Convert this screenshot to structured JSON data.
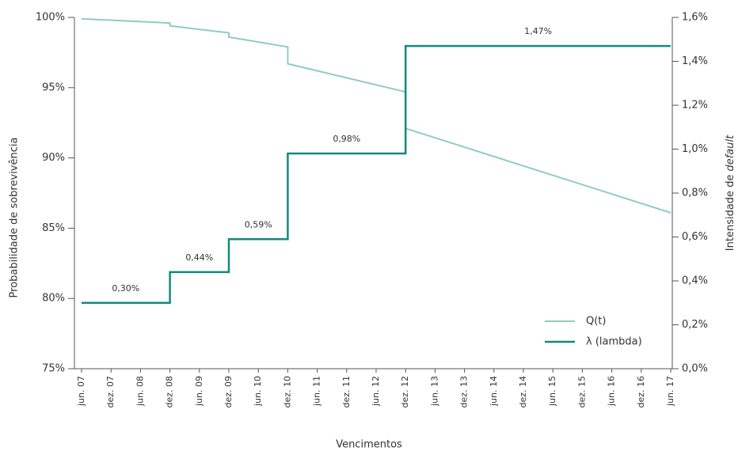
{
  "chart_data": {
    "type": "line",
    "xlabel": "Vencimentos",
    "ylabel": "Probabilidade de sobrevivência",
    "y2label": [
      "Intensidade de",
      "default"
    ],
    "categories": [
      "jun. 07",
      "dez. 07",
      "jun. 08",
      "dez. 08",
      "jun. 09",
      "dez. 09",
      "jun. 10",
      "dez. 10",
      "jun. 11",
      "dez. 11",
      "jun. 12",
      "dez. 12",
      "jun. 13",
      "dez. 13",
      "jun. 14",
      "dez. 14",
      "jun. 15",
      "dez. 15",
      "jun. 16",
      "dez. 16",
      "jun. 17"
    ],
    "ylim": [
      75,
      100
    ],
    "yticks": [
      {
        "value": 75,
        "label": "75%"
      },
      {
        "value": 80,
        "label": "80%"
      },
      {
        "value": 85,
        "label": "85%"
      },
      {
        "value": 90,
        "label": "90%"
      },
      {
        "value": 95,
        "label": "95%"
      },
      {
        "value": 100,
        "label": "100%"
      }
    ],
    "y2lim": [
      0,
      1.6
    ],
    "y2ticks": [
      {
        "value": 0,
        "label": "0,0%"
      },
      {
        "value": 0.2,
        "label": "0,2%"
      },
      {
        "value": 0.4,
        "label": "0,4%"
      },
      {
        "value": 0.6,
        "label": "0,6%"
      },
      {
        "value": 0.8,
        "label": "0,8%"
      },
      {
        "value": 1.0,
        "label": "1,0%"
      },
      {
        "value": 1.2,
        "label": "1,2%"
      },
      {
        "value": 1.4,
        "label": "1,4%"
      },
      {
        "value": 1.6,
        "label": "1,6%"
      }
    ],
    "series": [
      {
        "name": "Q(t)",
        "color": "#8ecdc3",
        "x": [
          "jun. 07",
          "dez. 08",
          "dez. 08",
          "dez. 09",
          "dez. 09",
          "dez. 10",
          "dez. 10",
          "dez. 12",
          "dez. 12",
          "jun. 17"
        ],
        "values": [
          99.9,
          99.6,
          99.4,
          98.9,
          98.6,
          97.9,
          96.7,
          94.7,
          92.1,
          86.1
        ]
      },
      {
        "name": "λ (lambda)",
        "color": "#138a7e",
        "axis": "y2",
        "x": [
          "jun. 07",
          "dez. 08",
          "dez. 08",
          "dez. 09",
          "dez. 09",
          "dez. 10",
          "dez. 10",
          "dez. 12",
          "dez. 12",
          "jun. 17"
        ],
        "values": [
          0.3,
          0.3,
          0.44,
          0.44,
          0.59,
          0.59,
          0.98,
          0.98,
          1.47,
          1.47
        ],
        "value_labels": [
          "0,30%",
          null,
          "0,44%",
          null,
          "0,59%",
          null,
          "0,98%",
          null,
          "1,47%",
          null
        ]
      }
    ],
    "legend": "lower right"
  }
}
